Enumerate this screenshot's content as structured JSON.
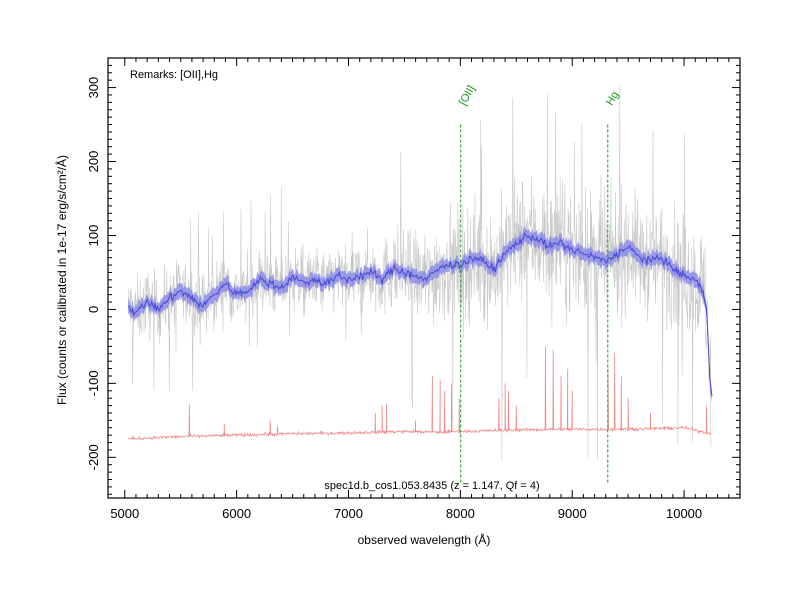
{
  "chart_data": {
    "type": "line",
    "title": "",
    "xlabel": "observed wavelength (Å)",
    "ylabel": "Flux (counts or calibrated in 1e-17 erg/s/cm²/Å)",
    "xlim": [
      4850,
      10500
    ],
    "ylim": [
      -255,
      340
    ],
    "x_ticks": [
      5000,
      6000,
      7000,
      8000,
      9000,
      10000
    ],
    "y_ticks": [
      -200,
      -100,
      0,
      100,
      200,
      300
    ],
    "grid": false,
    "remarks": "Remarks: [OII],Hg",
    "caption": "spec1d.b_cos1.053.8435 (z = 1.147, Qf = 4)",
    "emission_lines": [
      {
        "label": "[OII]",
        "wavelength": 8003
      },
      {
        "label": "Hg",
        "wavelength": 9318
      }
    ],
    "series": [
      {
        "role": "raw-flux",
        "color": "#c8c8c8",
        "wavelength_start": 5030,
        "wavelength_end": 10240,
        "noise_profile": [
          [
            5030,
            60
          ],
          [
            6000,
            55
          ],
          [
            7000,
            60
          ],
          [
            7500,
            75
          ],
          [
            7800,
            95
          ],
          [
            8500,
            110
          ],
          [
            9300,
            110
          ],
          [
            9700,
            95
          ],
          [
            10240,
            110
          ]
        ]
      },
      {
        "role": "smoothed-flux",
        "color": "#4848d8",
        "band_color": "#8c8ce6",
        "x": [
          5030,
          5100,
          5200,
          5300,
          5400,
          5500,
          5600,
          5700,
          5800,
          5900,
          6000,
          6100,
          6200,
          6300,
          6400,
          6500,
          6600,
          6700,
          6800,
          6900,
          7000,
          7100,
          7200,
          7300,
          7400,
          7500,
          7600,
          7700,
          7800,
          7900,
          8000,
          8100,
          8200,
          8300,
          8400,
          8500,
          8600,
          8700,
          8800,
          8900,
          9000,
          9100,
          9200,
          9300,
          9400,
          9500,
          9600,
          9700,
          9800,
          9900,
          10000,
          10100,
          10150,
          10200,
          10230,
          10250
        ],
        "y": [
          5,
          -5,
          10,
          0,
          15,
          25,
          15,
          5,
          20,
          35,
          20,
          25,
          40,
          35,
          30,
          45,
          35,
          40,
          35,
          45,
          40,
          45,
          50,
          40,
          55,
          50,
          45,
          40,
          55,
          60,
          60,
          70,
          65,
          55,
          75,
          90,
          100,
          95,
          85,
          90,
          80,
          75,
          70,
          65,
          75,
          85,
          70,
          65,
          70,
          55,
          45,
          40,
          30,
          5,
          -90,
          -115
        ]
      },
      {
        "role": "sky-spectrum",
        "color": "#f08a8a",
        "x": [
          5030,
          5500,
          6000,
          6500,
          7000,
          7500,
          7800,
          8000,
          8500,
          9000,
          9500,
          10000,
          10240
        ],
        "y": [
          -175,
          -172,
          -170,
          -168,
          -167,
          -165,
          -166,
          -165,
          -163,
          -162,
          -162,
          -160,
          -168
        ],
        "spikes": [
          {
            "wavelength": 5577,
            "peak": -128
          },
          {
            "wavelength": 5890,
            "peak": -155
          },
          {
            "wavelength": 6300,
            "peak": -150
          },
          {
            "wavelength": 6364,
            "peak": -158
          },
          {
            "wavelength": 7240,
            "peak": -140
          },
          {
            "wavelength": 7300,
            "peak": -130
          },
          {
            "wavelength": 7340,
            "peak": -128
          },
          {
            "wavelength": 7600,
            "peak": -150
          },
          {
            "wavelength": 7750,
            "peak": -90
          },
          {
            "wavelength": 7820,
            "peak": -95
          },
          {
            "wavelength": 7860,
            "peak": -110
          },
          {
            "wavelength": 7920,
            "peak": -100
          },
          {
            "wavelength": 7990,
            "peak": -120
          },
          {
            "wavelength": 8345,
            "peak": -120
          },
          {
            "wavelength": 8400,
            "peak": -100
          },
          {
            "wavelength": 8430,
            "peak": -110
          },
          {
            "wavelength": 8500,
            "peak": -130
          },
          {
            "wavelength": 8760,
            "peak": -50
          },
          {
            "wavelength": 8830,
            "peak": -55
          },
          {
            "wavelength": 8900,
            "peak": -90
          },
          {
            "wavelength": 8960,
            "peak": -80
          },
          {
            "wavelength": 9000,
            "peak": -110
          },
          {
            "wavelength": 9320,
            "peak": -80
          },
          {
            "wavelength": 9380,
            "peak": -60
          },
          {
            "wavelength": 9440,
            "peak": -90
          },
          {
            "wavelength": 9500,
            "peak": -120
          },
          {
            "wavelength": 9700,
            "peak": -140
          },
          {
            "wavelength": 10000,
            "peak": -160
          },
          {
            "wavelength": 10200,
            "peak": -130
          }
        ]
      }
    ]
  }
}
